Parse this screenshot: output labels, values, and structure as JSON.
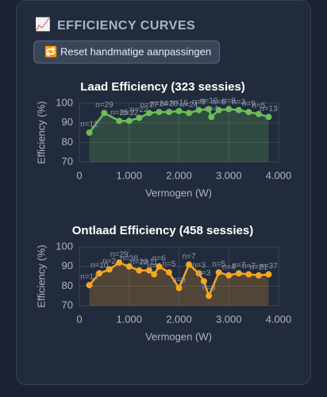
{
  "header": {
    "icon": "📈",
    "title": "EFFICIENCY CURVES"
  },
  "button": {
    "icon": "🔁",
    "label": "Reset handmatige aanpassingen"
  },
  "chart_data": [
    {
      "type": "line",
      "title": "Laad Efficiency (323 sessies)",
      "x_label": "Vermogen (W)",
      "y_label": "Efficiency (%)",
      "x": [
        200,
        500,
        800,
        1000,
        1200,
        1400,
        1600,
        1800,
        2000,
        2200,
        2400,
        2600,
        2650,
        2800,
        3000,
        3200,
        3400,
        3600,
        3800
      ],
      "series": [
        {
          "name": "Laad",
          "color": "#6abf59",
          "values": [
            85,
            95,
            91,
            91,
            92.5,
            95,
            95.5,
            95.5,
            96,
            95,
            96.5,
            97,
            93,
            96.5,
            97,
            96.5,
            95.5,
            94.5,
            93
          ],
          "point_labels": [
            "n=12",
            "n=29",
            "n=25",
            "n=32",
            "n=22",
            "n=27",
            "n=24",
            "n=20",
            "n=16",
            "n=24",
            "n=9",
            "n=10",
            "n=4",
            "n=6",
            "n=8",
            "n=3",
            "n=9",
            "n=5",
            "n=13"
          ]
        }
      ],
      "xlim": [
        0,
        4000
      ],
      "xticks": [
        0,
        {
          "value": 1000,
          "label": "1.000"
        },
        {
          "value": 2000,
          "label": "2.000"
        },
        {
          "value": 3000,
          "label": "3.000"
        },
        {
          "value": 4000,
          "label": "4.000"
        }
      ],
      "ylim": [
        70,
        100
      ],
      "yticks": [
        70,
        80,
        90,
        100
      ],
      "grid": true
    },
    {
      "type": "line",
      "title": "Ontlaad Efficiency (458 sessies)",
      "x_label": "Vermogen (W)",
      "y_label": "Efficiency (%)",
      "x": [
        200,
        400,
        600,
        800,
        1000,
        1200,
        1400,
        1500,
        1600,
        1800,
        2000,
        2200,
        2400,
        2500,
        2600,
        2800,
        3000,
        3200,
        3400,
        3600,
        3800
      ],
      "series": [
        {
          "name": "Ontlaad",
          "color": "#f5a623",
          "values": [
            80.5,
            86.5,
            88.5,
            92,
            90,
            88,
            88,
            86,
            90,
            87,
            79,
            91,
            86.5,
            82.5,
            75,
            87,
            85.5,
            86.5,
            86,
            85.5,
            86
          ],
          "point_labels": [
            "n=12",
            "n=10",
            "n=2",
            "n=29",
            "n=38",
            "n=23",
            "n=11",
            "n=4",
            "n=6",
            "n=5",
            "n=9",
            "n=7",
            "n=3",
            "n=3",
            "n=3",
            "n=5",
            "n=4",
            "n=7",
            "n=7",
            "n=21",
            "n=37"
          ]
        }
      ],
      "xlim": [
        0,
        4000
      ],
      "xticks": [
        0,
        {
          "value": 1000,
          "label": "1.000"
        },
        {
          "value": 2000,
          "label": "2.000"
        },
        {
          "value": 3000,
          "label": "3.000"
        },
        {
          "value": 4000,
          "label": "4.000"
        }
      ],
      "ylim": [
        70,
        100
      ],
      "yticks": [
        70,
        80,
        90,
        100
      ],
      "grid": true
    }
  ]
}
